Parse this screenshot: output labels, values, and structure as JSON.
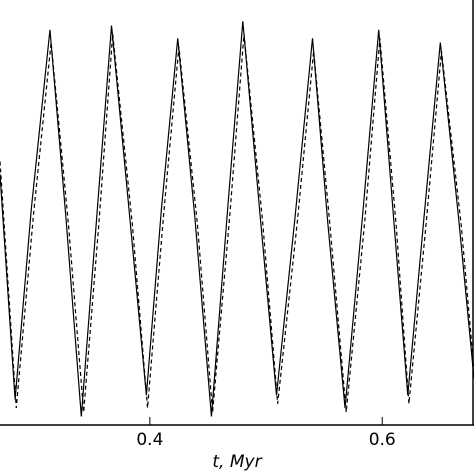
{
  "chart_data": {
    "type": "line",
    "x_label": "t, Myr",
    "xlim": [
      0.271,
      0.679
    ],
    "xticks": [
      0.4,
      0.6
    ],
    "ylim": [
      0,
      1
    ],
    "series": [
      {
        "color": "#000000",
        "dash": "solid",
        "x": [
          0.271,
          0.284,
          0.298,
          0.314,
          0.328,
          0.341,
          0.354,
          0.367,
          0.383,
          0.397,
          0.41,
          0.424,
          0.439,
          0.453,
          0.467,
          0.48,
          0.495,
          0.509,
          0.525,
          0.54,
          0.553,
          0.568,
          0.583,
          0.597,
          0.61,
          0.622,
          0.636,
          0.65,
          0.666,
          0.679
        ],
        "values": [
          0.59,
          0.06,
          0.51,
          0.93,
          0.48,
          0.02,
          0.48,
          0.94,
          0.48,
          0.07,
          0.51,
          0.91,
          0.48,
          0.02,
          0.51,
          0.95,
          0.49,
          0.07,
          0.49,
          0.91,
          0.48,
          0.04,
          0.49,
          0.93,
          0.48,
          0.07,
          0.49,
          0.9,
          0.48,
          0.11
        ]
      },
      {
        "color": "#000000",
        "dash": "dashed",
        "x": [
          0.271,
          0.285,
          0.3,
          0.315,
          0.33,
          0.343,
          0.356,
          0.368,
          0.385,
          0.398,
          0.412,
          0.425,
          0.441,
          0.454,
          0.469,
          0.481,
          0.497,
          0.51,
          0.527,
          0.541,
          0.555,
          0.569,
          0.585,
          0.598,
          0.612,
          0.623,
          0.638,
          0.651,
          0.668,
          0.679
        ],
        "values": [
          0.62,
          0.04,
          0.5,
          0.9,
          0.47,
          0.03,
          0.47,
          0.92,
          0.47,
          0.04,
          0.5,
          0.89,
          0.47,
          0.03,
          0.5,
          0.92,
          0.48,
          0.05,
          0.48,
          0.88,
          0.47,
          0.03,
          0.48,
          0.91,
          0.47,
          0.05,
          0.48,
          0.88,
          0.47,
          0.13
        ]
      }
    ]
  }
}
